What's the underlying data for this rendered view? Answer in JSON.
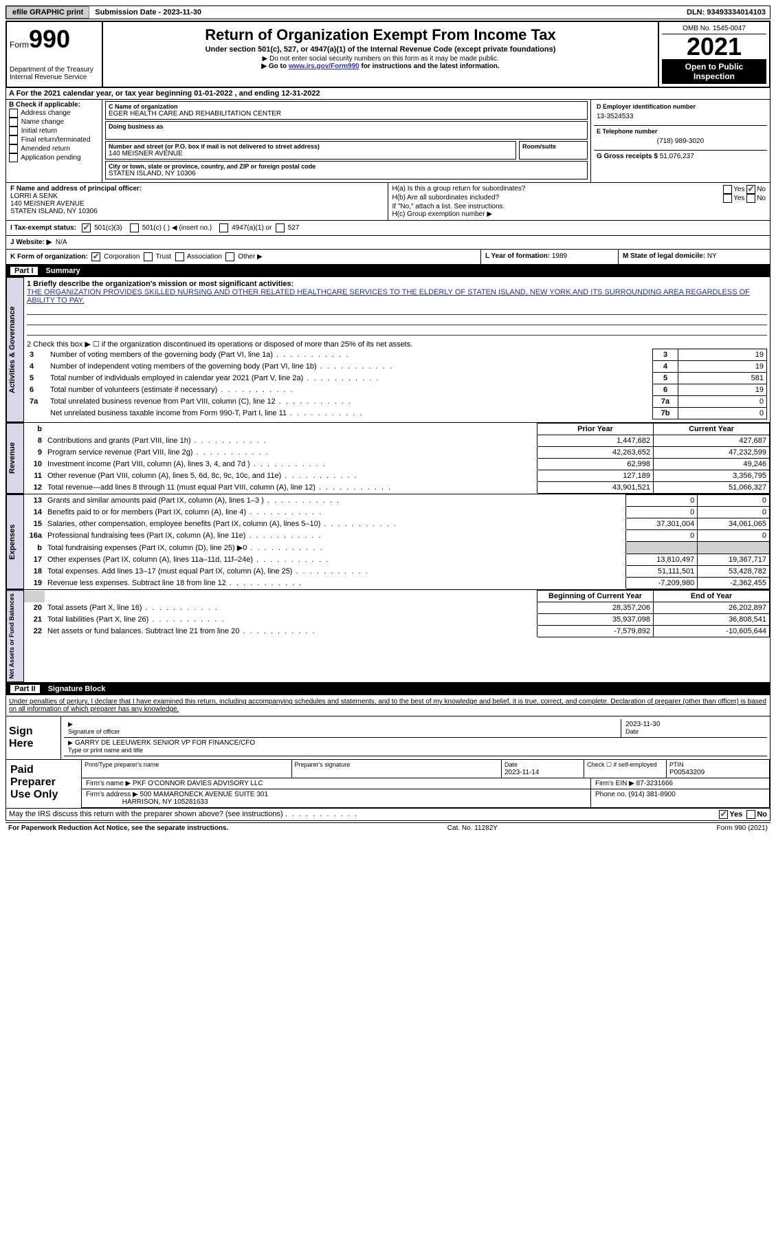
{
  "topbar": {
    "efile": "efile GRAPHIC print",
    "sub_label": "Submission Date - ",
    "sub_date": "2023-11-30",
    "dln_label": "DLN: ",
    "dln": "93493334014103"
  },
  "header": {
    "form_prefix": "Form",
    "form_no": "990",
    "dept": "Department of the Treasury\nInternal Revenue Service",
    "title": "Return of Organization Exempt From Income Tax",
    "subtitle": "Under section 501(c), 527, or 4947(a)(1) of the Internal Revenue Code (except private foundations)",
    "note1": "▶ Do not enter social security numbers on this form as it may be made public.",
    "note2_pre": "▶ Go to ",
    "note2_link": "www.irs.gov/Form990",
    "note2_post": " for instructions and the latest information.",
    "omb": "OMB No. 1545-0047",
    "year": "2021",
    "otp": "Open to Public Inspection"
  },
  "lineA": "A For the 2021 calendar year, or tax year beginning 01-01-2022   , and ending 12-31-2022",
  "B": {
    "label": "B Check if applicable:",
    "opts": [
      "Address change",
      "Name change",
      "Initial return",
      "Final return/terminated",
      "Amended return",
      "Application pending"
    ]
  },
  "C": {
    "name_label": "C Name of organization",
    "name": "EGER HEALTH CARE AND REHABILITATION CENTER",
    "dba_label": "Doing business as",
    "street_label": "Number and street (or P.O. box if mail is not delivered to street address)",
    "room_label": "Room/suite",
    "street": "140 MEISNER AVENUE",
    "city_label": "City or town, state or province, country, and ZIP or foreign postal code",
    "city": "STATEN ISLAND, NY  10306"
  },
  "D": {
    "label": "D Employer identification number",
    "value": "13-3524533"
  },
  "E": {
    "label": "E Telephone number",
    "value": "(718) 989-3020"
  },
  "G": {
    "label": "G Gross receipts $ ",
    "value": "51,076,237"
  },
  "F": {
    "label": "F  Name and address of principal officer:",
    "name": "LORRI A SENK",
    "addr1": "140 MEISNER AVENUE",
    "addr2": "STATEN ISLAND, NY  10306"
  },
  "H": {
    "a": "H(a)  Is this a group return for subordinates?",
    "b": "H(b)  Are all subordinates included?",
    "bnote": "If \"No,\" attach a list. See instructions.",
    "c": "H(c)  Group exemption number ▶",
    "yes": "Yes",
    "no": "No"
  },
  "I": {
    "label": "I  Tax-exempt status:",
    "o1": "501(c)(3)",
    "o2": "501(c) (  ) ◀ (insert no.)",
    "o3": "4947(a)(1) or",
    "o4": "527"
  },
  "J": {
    "label": "J  Website: ▶",
    "value": "N/A"
  },
  "K": {
    "label": "K Form of organization:",
    "o1": "Corporation",
    "o2": "Trust",
    "o3": "Association",
    "o4": "Other ▶"
  },
  "L": {
    "label": "L Year of formation: ",
    "value": "1989"
  },
  "M": {
    "label": "M State of legal domicile: ",
    "value": "NY"
  },
  "part1": {
    "bar_num": "Part I",
    "bar_title": "Summary",
    "tab_ag": "Activities & Governance",
    "tab_rev": "Revenue",
    "tab_exp": "Expenses",
    "tab_na": "Net Assets or Fund Balances",
    "l1": "1  Briefly describe the organization's mission or most significant activities:",
    "mission": "THE ORGANIZATION PROVIDES SKILLED NURSING AND OTHER RELATED HEALTHCARE SERVICES TO THE ELDERLY OF STATEN ISLAND, NEW YORK AND ITS SURROUNDING AREA REGARDLESS OF ABILITY TO PAY.",
    "l2": "2   Check this box ▶ ☐  if the organization discontinued its operations or disposed of more than 25% of its net assets.",
    "rows_ag": [
      {
        "n": "3",
        "desc": "Number of voting members of the governing body (Part VI, line 1a)",
        "key": "3",
        "val": "19"
      },
      {
        "n": "4",
        "desc": "Number of independent voting members of the governing body (Part VI, line 1b)",
        "key": "4",
        "val": "19"
      },
      {
        "n": "5",
        "desc": "Total number of individuals employed in calendar year 2021 (Part V, line 2a)",
        "key": "5",
        "val": "581"
      },
      {
        "n": "6",
        "desc": "Total number of volunteers (estimate if necessary)",
        "key": "6",
        "val": "19"
      },
      {
        "n": "7a",
        "desc": "Total unrelated business revenue from Part VIII, column (C), line 12",
        "key": "7a",
        "val": "0"
      },
      {
        "n": "",
        "desc": "Net unrelated business taxable income from Form 990-T, Part I, line 11",
        "key": "7b",
        "val": "0"
      }
    ],
    "fin_hdr_prior": "Prior Year",
    "fin_hdr_curr": "Current Year",
    "rows_rev": [
      {
        "n": "8",
        "desc": "Contributions and grants (Part VIII, line 1h)",
        "py": "1,447,682",
        "cy": "427,687"
      },
      {
        "n": "9",
        "desc": "Program service revenue (Part VIII, line 2g)",
        "py": "42,263,652",
        "cy": "47,232,599"
      },
      {
        "n": "10",
        "desc": "Investment income (Part VIII, column (A), lines 3, 4, and 7d )",
        "py": "62,998",
        "cy": "49,246"
      },
      {
        "n": "11",
        "desc": "Other revenue (Part VIII, column (A), lines 5, 6d, 8c, 9c, 10c, and 11e)",
        "py": "127,189",
        "cy": "3,356,795"
      },
      {
        "n": "12",
        "desc": "Total revenue—add lines 8 through 11 (must equal Part VIII, column (A), line 12)",
        "py": "43,901,521",
        "cy": "51,066,327"
      }
    ],
    "rows_exp": [
      {
        "n": "13",
        "desc": "Grants and similar amounts paid (Part IX, column (A), lines 1–3 )",
        "py": "0",
        "cy": "0"
      },
      {
        "n": "14",
        "desc": "Benefits paid to or for members (Part IX, column (A), line 4)",
        "py": "0",
        "cy": "0"
      },
      {
        "n": "15",
        "desc": "Salaries, other compensation, employee benefits (Part IX, column (A), lines 5–10)",
        "py": "37,301,004",
        "cy": "34,061,065"
      },
      {
        "n": "16a",
        "desc": "Professional fundraising fees (Part IX, column (A), line 11e)",
        "py": "0",
        "cy": "0"
      },
      {
        "n": "b",
        "desc": "Total fundraising expenses (Part IX, column (D), line 25) ▶0",
        "py": "GREY",
        "cy": "GREY"
      },
      {
        "n": "17",
        "desc": "Other expenses (Part IX, column (A), lines 11a–11d, 11f–24e)",
        "py": "13,810,497",
        "cy": "19,367,717"
      },
      {
        "n": "18",
        "desc": "Total expenses. Add lines 13–17 (must equal Part IX, column (A), line 25)",
        "py": "51,111,501",
        "cy": "53,428,782"
      },
      {
        "n": "19",
        "desc": "Revenue less expenses. Subtract line 18 from line 12",
        "py": "-7,209,980",
        "cy": "-2,362,455"
      }
    ],
    "na_hdr_beg": "Beginning of Current Year",
    "na_hdr_end": "End of Year",
    "rows_na": [
      {
        "n": "20",
        "desc": "Total assets (Part X, line 16)",
        "py": "28,357,206",
        "cy": "26,202,897"
      },
      {
        "n": "21",
        "desc": "Total liabilities (Part X, line 26)",
        "py": "35,937,098",
        "cy": "36,808,541"
      },
      {
        "n": "22",
        "desc": "Net assets or fund balances. Subtract line 21 from line 20",
        "py": "-7,579,892",
        "cy": "-10,605,644"
      }
    ]
  },
  "part2": {
    "bar_num": "Part II",
    "bar_title": "Signature Block",
    "penalty": "Under penalties of perjury, I declare that I have examined this return, including accompanying schedules and statements, and to the best of my knowledge and belief, it is true, correct, and complete. Declaration of preparer (other than officer) is based on all information of which preparer has any knowledge.",
    "sign_here": "Sign Here",
    "sig_officer": "Signature of officer",
    "sig_date_lbl": "Date",
    "sig_date": "2023-11-30",
    "officer_name": "GARRY DE LEEUWERK  SENIOR VP FOR FINANCE/CFO",
    "officer_hint": "Type or print name and title",
    "paid": "Paid Preparer Use Only",
    "p_name_lbl": "Print/Type preparer's name",
    "p_sig_lbl": "Preparer's signature",
    "p_date_lbl": "Date",
    "p_date": "2023-11-14",
    "p_self": "Check ☐ if self-employed",
    "p_ptin_lbl": "PTIN",
    "p_ptin": "P00543209",
    "firm_name_lbl": "Firm's name    ▶ ",
    "firm_name": "PKF O'CONNOR DAVIES ADVISORY LLC",
    "firm_ein_lbl": "Firm's EIN ▶ ",
    "firm_ein": "87-3231666",
    "firm_addr_lbl": "Firm's address ▶ ",
    "firm_addr1": "500 MAMARONECK AVENUE SUITE 301",
    "firm_addr2": "HARRISON, NY  105281633",
    "firm_phone_lbl": "Phone no. ",
    "firm_phone": "(914) 381-8900",
    "discuss": "May the IRS discuss this return with the preparer shown above? (see instructions)",
    "yes": "Yes",
    "no": "No"
  },
  "footer": {
    "left": "For Paperwork Reduction Act Notice, see the separate instructions.",
    "mid": "Cat. No. 11282Y",
    "right": "Form 990 (2021)"
  }
}
